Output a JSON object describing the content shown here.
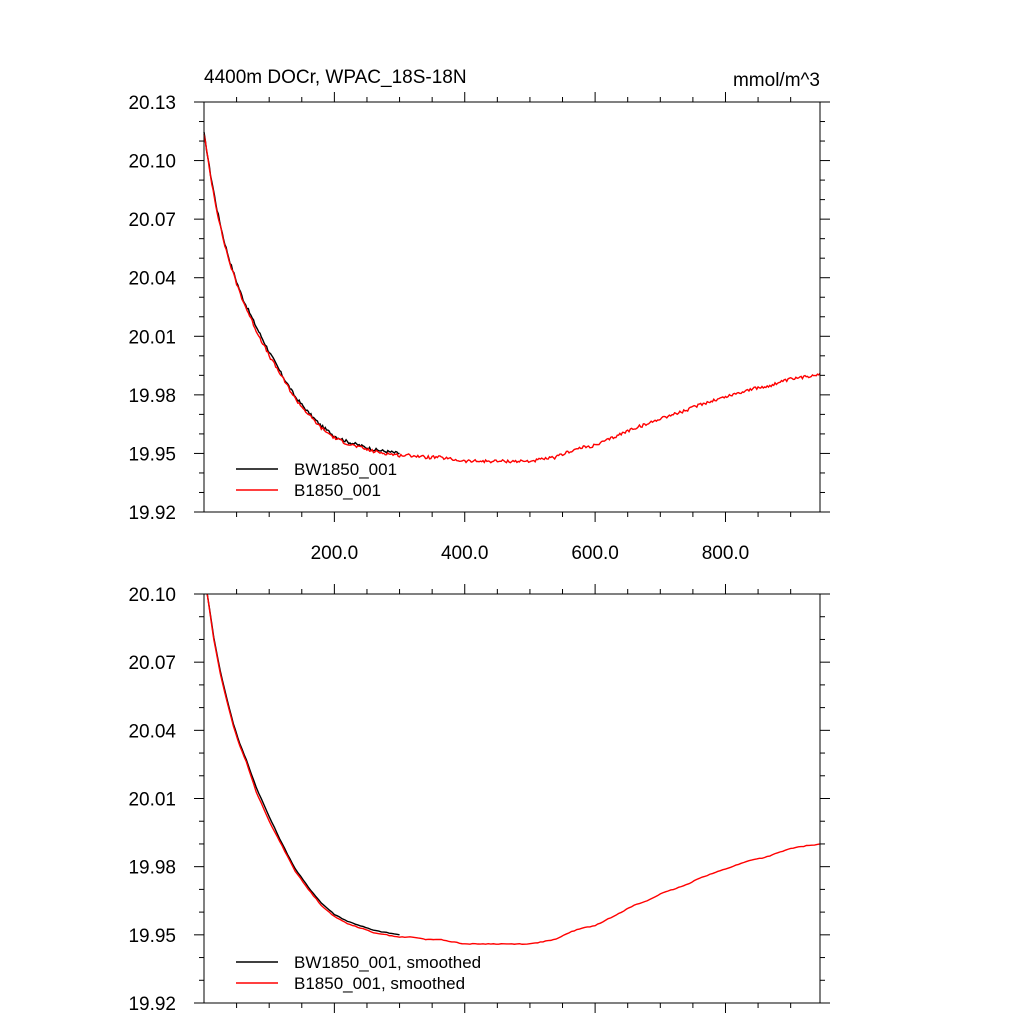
{
  "chart_data": [
    {
      "type": "line",
      "title_left": "4400m DOCr, WPAC_18S-18N",
      "title_right": "mmol/m^3",
      "xlim": [
        0,
        945
      ],
      "ylim": [
        19.92,
        20.13
      ],
      "x_ticks": [
        200,
        400,
        600,
        800
      ],
      "x_tick_labels": [
        "200.0",
        "400.0",
        "600.0",
        "800.0"
      ],
      "y_ticks": [
        19.92,
        19.95,
        19.98,
        20.01,
        20.04,
        20.07,
        20.1,
        20.13
      ],
      "y_tick_labels": [
        "19.92",
        "19.95",
        "19.98",
        "20.01",
        "20.04",
        "20.07",
        "20.10",
        "20.13"
      ],
      "legend_position": "bottom-left",
      "series": [
        {
          "name": "BW1850_001",
          "color": "#000000",
          "x": [
            0,
            10,
            20,
            30,
            40,
            50,
            60,
            80,
            100,
            120,
            140,
            160,
            180,
            200,
            220,
            240,
            260,
            280,
            300
          ],
          "y": [
            20.114,
            20.093,
            20.075,
            20.06,
            20.048,
            20.038,
            20.029,
            20.015,
            20.002,
            19.99,
            19.979,
            19.971,
            19.964,
            19.959,
            19.956,
            19.954,
            19.952,
            19.951,
            19.95
          ]
        },
        {
          "name": "B1850_001",
          "color": "#ff0000",
          "x": [
            0,
            10,
            20,
            30,
            40,
            50,
            60,
            80,
            100,
            120,
            140,
            160,
            180,
            200,
            220,
            240,
            260,
            280,
            300,
            320,
            340,
            360,
            380,
            400,
            420,
            440,
            460,
            480,
            500,
            520,
            540,
            560,
            580,
            600,
            620,
            640,
            660,
            680,
            700,
            720,
            740,
            760,
            780,
            800,
            820,
            840,
            860,
            880,
            900,
            920,
            945
          ],
          "y": [
            20.114,
            20.092,
            20.074,
            20.059,
            20.047,
            20.037,
            20.028,
            20.013,
            20.0,
            19.989,
            19.978,
            19.97,
            19.963,
            19.958,
            19.955,
            19.953,
            19.951,
            19.95,
            19.949,
            19.949,
            19.948,
            19.948,
            19.947,
            19.946,
            19.946,
            19.946,
            19.946,
            19.946,
            19.946,
            19.947,
            19.948,
            19.951,
            19.953,
            19.954,
            19.957,
            19.96,
            19.963,
            19.965,
            19.968,
            19.97,
            19.972,
            19.975,
            19.977,
            19.979,
            19.981,
            19.983,
            19.984,
            19.986,
            19.988,
            19.989,
            19.991
          ]
        }
      ]
    },
    {
      "type": "line",
      "xlim": [
        0,
        945
      ],
      "ylim": [
        19.92,
        20.1
      ],
      "x_ticks": [
        200,
        400,
        600,
        800
      ],
      "y_ticks": [
        19.92,
        19.95,
        19.98,
        20.01,
        20.04,
        20.07,
        20.1
      ],
      "y_tick_labels": [
        "19.92",
        "19.95",
        "19.98",
        "20.01",
        "20.04",
        "20.07",
        "20.10"
      ],
      "legend_position": "bottom-left",
      "series": [
        {
          "name": "BW1850_001, smoothed",
          "color": "#000000",
          "x": [
            5,
            15,
            25,
            35,
            45,
            55,
            65,
            80,
            100,
            120,
            140,
            160,
            180,
            200,
            220,
            240,
            260,
            280,
            300
          ],
          "y": [
            20.1,
            20.081,
            20.066,
            20.054,
            20.043,
            20.034,
            20.027,
            20.015,
            20.002,
            19.99,
            19.979,
            19.971,
            19.964,
            19.959,
            19.956,
            19.954,
            19.952,
            19.951,
            19.95
          ]
        },
        {
          "name": "B1850_001, smoothed",
          "color": "#ff0000",
          "x": [
            5,
            15,
            25,
            35,
            45,
            55,
            65,
            80,
            100,
            120,
            140,
            160,
            180,
            200,
            220,
            240,
            260,
            280,
            300,
            320,
            340,
            360,
            380,
            400,
            420,
            440,
            460,
            480,
            500,
            520,
            540,
            560,
            580,
            600,
            620,
            640,
            660,
            680,
            700,
            720,
            740,
            760,
            780,
            800,
            820,
            840,
            860,
            880,
            900,
            920,
            945
          ],
          "y": [
            20.1,
            20.08,
            20.065,
            20.053,
            20.042,
            20.033,
            20.026,
            20.013,
            20.0,
            19.989,
            19.978,
            19.97,
            19.963,
            19.958,
            19.955,
            19.953,
            19.951,
            19.95,
            19.949,
            19.949,
            19.948,
            19.948,
            19.947,
            19.946,
            19.946,
            19.946,
            19.946,
            19.946,
            19.946,
            19.947,
            19.948,
            19.951,
            19.953,
            19.954,
            19.957,
            19.96,
            19.963,
            19.965,
            19.968,
            19.97,
            19.972,
            19.975,
            19.977,
            19.979,
            19.981,
            19.983,
            19.984,
            19.986,
            19.988,
            19.989,
            19.99
          ]
        }
      ]
    }
  ]
}
